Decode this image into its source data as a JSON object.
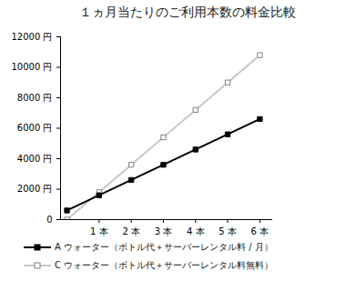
{
  "chart_data": {
    "type": "line",
    "title": "１ヵ月当たりのご利用本数の料金比較",
    "x": [
      0,
      1,
      2,
      3,
      4,
      5,
      6
    ],
    "series": [
      {
        "name": "A ウォーター（ボトル代＋サーバーレンタル料 / 月）",
        "color": "#000000",
        "marker": "square",
        "line_style": "solid",
        "values": [
          600,
          1600,
          2600,
          3600,
          4600,
          5600,
          6600
        ]
      },
      {
        "name": "C ウォーター（ボトル代＋サーバーレンタル料無料）",
        "color": "#c8c8c8",
        "marker": "square_open",
        "line_style": "solid",
        "values": [
          0,
          1800,
          3600,
          5400,
          7200,
          9000,
          10800
        ]
      }
    ],
    "xlim": [
      -0.2,
      6.4
    ],
    "xticks": [
      {
        "value": 1,
        "label": "1 本"
      },
      {
        "value": 2,
        "label": "2 本"
      },
      {
        "value": 3,
        "label": "3 本"
      },
      {
        "value": 4,
        "label": "4 本"
      },
      {
        "value": 5,
        "label": "5 本"
      },
      {
        "value": 6,
        "label": "6 本"
      }
    ],
    "ylim": [
      0,
      12000
    ],
    "yticks": [
      0,
      {
        "value": 2000,
        "label": "2000 円"
      },
      {
        "value": 4000,
        "label": "4000 円"
      },
      {
        "value": 6000,
        "label": "6000 円"
      },
      {
        "value": 8000,
        "label": "8000 円"
      },
      {
        "value": 10000,
        "label": "10000 円"
      },
      {
        "value": 12000,
        "label": "12000 円"
      }
    ],
    "grid": false,
    "legend": "bottom"
  }
}
